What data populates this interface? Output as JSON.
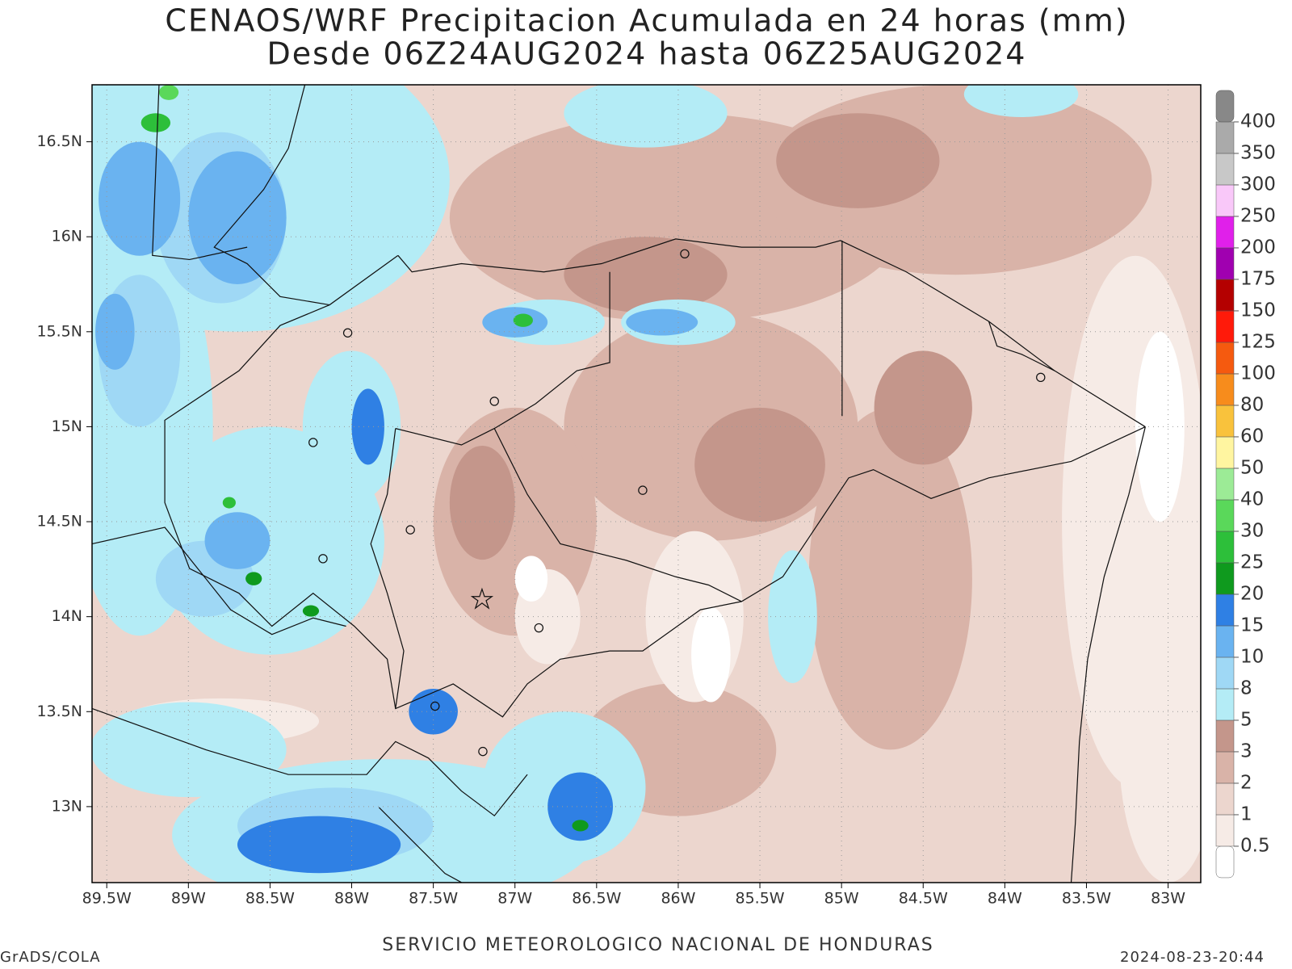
{
  "title": "CENAOS/WRF Precipitacion Acumulada en 24 horas (mm)",
  "subtitle": "Desde 06Z24AUG2024 hasta 06Z25AUG2024",
  "map": {
    "xlim": [
      -89.59,
      -82.8
    ],
    "ylim": [
      12.6,
      16.8
    ],
    "xticks": [
      {
        "value": -89.5,
        "label": "89.5W"
      },
      {
        "value": -89,
        "label": "89W"
      },
      {
        "value": -88.5,
        "label": "88.5W"
      },
      {
        "value": -88,
        "label": "88W"
      },
      {
        "value": -87.5,
        "label": "87.5W"
      },
      {
        "value": -87,
        "label": "87W"
      },
      {
        "value": -86.5,
        "label": "86.5W"
      },
      {
        "value": -86,
        "label": "86W"
      },
      {
        "value": -85.5,
        "label": "85.5W"
      },
      {
        "value": -85,
        "label": "85W"
      },
      {
        "value": -84.5,
        "label": "84.5W"
      },
      {
        "value": -84,
        "label": "84W"
      },
      {
        "value": -83.5,
        "label": "83.5W"
      },
      {
        "value": -83,
        "label": "83W"
      }
    ],
    "yticks": [
      {
        "value": 13,
        "label": "13N"
      },
      {
        "value": 13.5,
        "label": "13.5N"
      },
      {
        "value": 14,
        "label": "14N"
      },
      {
        "value": 14.5,
        "label": "14.5N"
      },
      {
        "value": 15,
        "label": "15N"
      },
      {
        "value": 15.5,
        "label": "15.5N"
      },
      {
        "value": 16,
        "label": "16N"
      },
      {
        "value": 16.5,
        "label": "16.5N"
      }
    ],
    "grid": true
  },
  "colorbar": {
    "levels": [
      0.5,
      1,
      2,
      3,
      5,
      8,
      10,
      15,
      20,
      25,
      30,
      40,
      50,
      60,
      80,
      100,
      125,
      150,
      175,
      200,
      250,
      300,
      350,
      400
    ],
    "colors": [
      "#ffffff",
      "#f6ebe6",
      "#ecd6ce",
      "#d9b3a8",
      "#c4968b",
      "#b4ecf6",
      "#9fd8f5",
      "#6ab3f0",
      "#2f80e4",
      "#0f9a1e",
      "#2dbf3a",
      "#5ad85a",
      "#9ceb96",
      "#fff5a0",
      "#f9c23c",
      "#f78c1c",
      "#f55a0f",
      "#ff1a0a",
      "#b40000",
      "#a000b0",
      "#e020ea",
      "#f9c8f9",
      "#c8c8c8",
      "#aaaaaa",
      "#888888"
    ]
  },
  "footer": {
    "center": "SERVICIO METEOROLOGICO NACIONAL DE HONDURAS",
    "left": "GrADS/COLA",
    "right": "2024-08-23-20:44"
  }
}
